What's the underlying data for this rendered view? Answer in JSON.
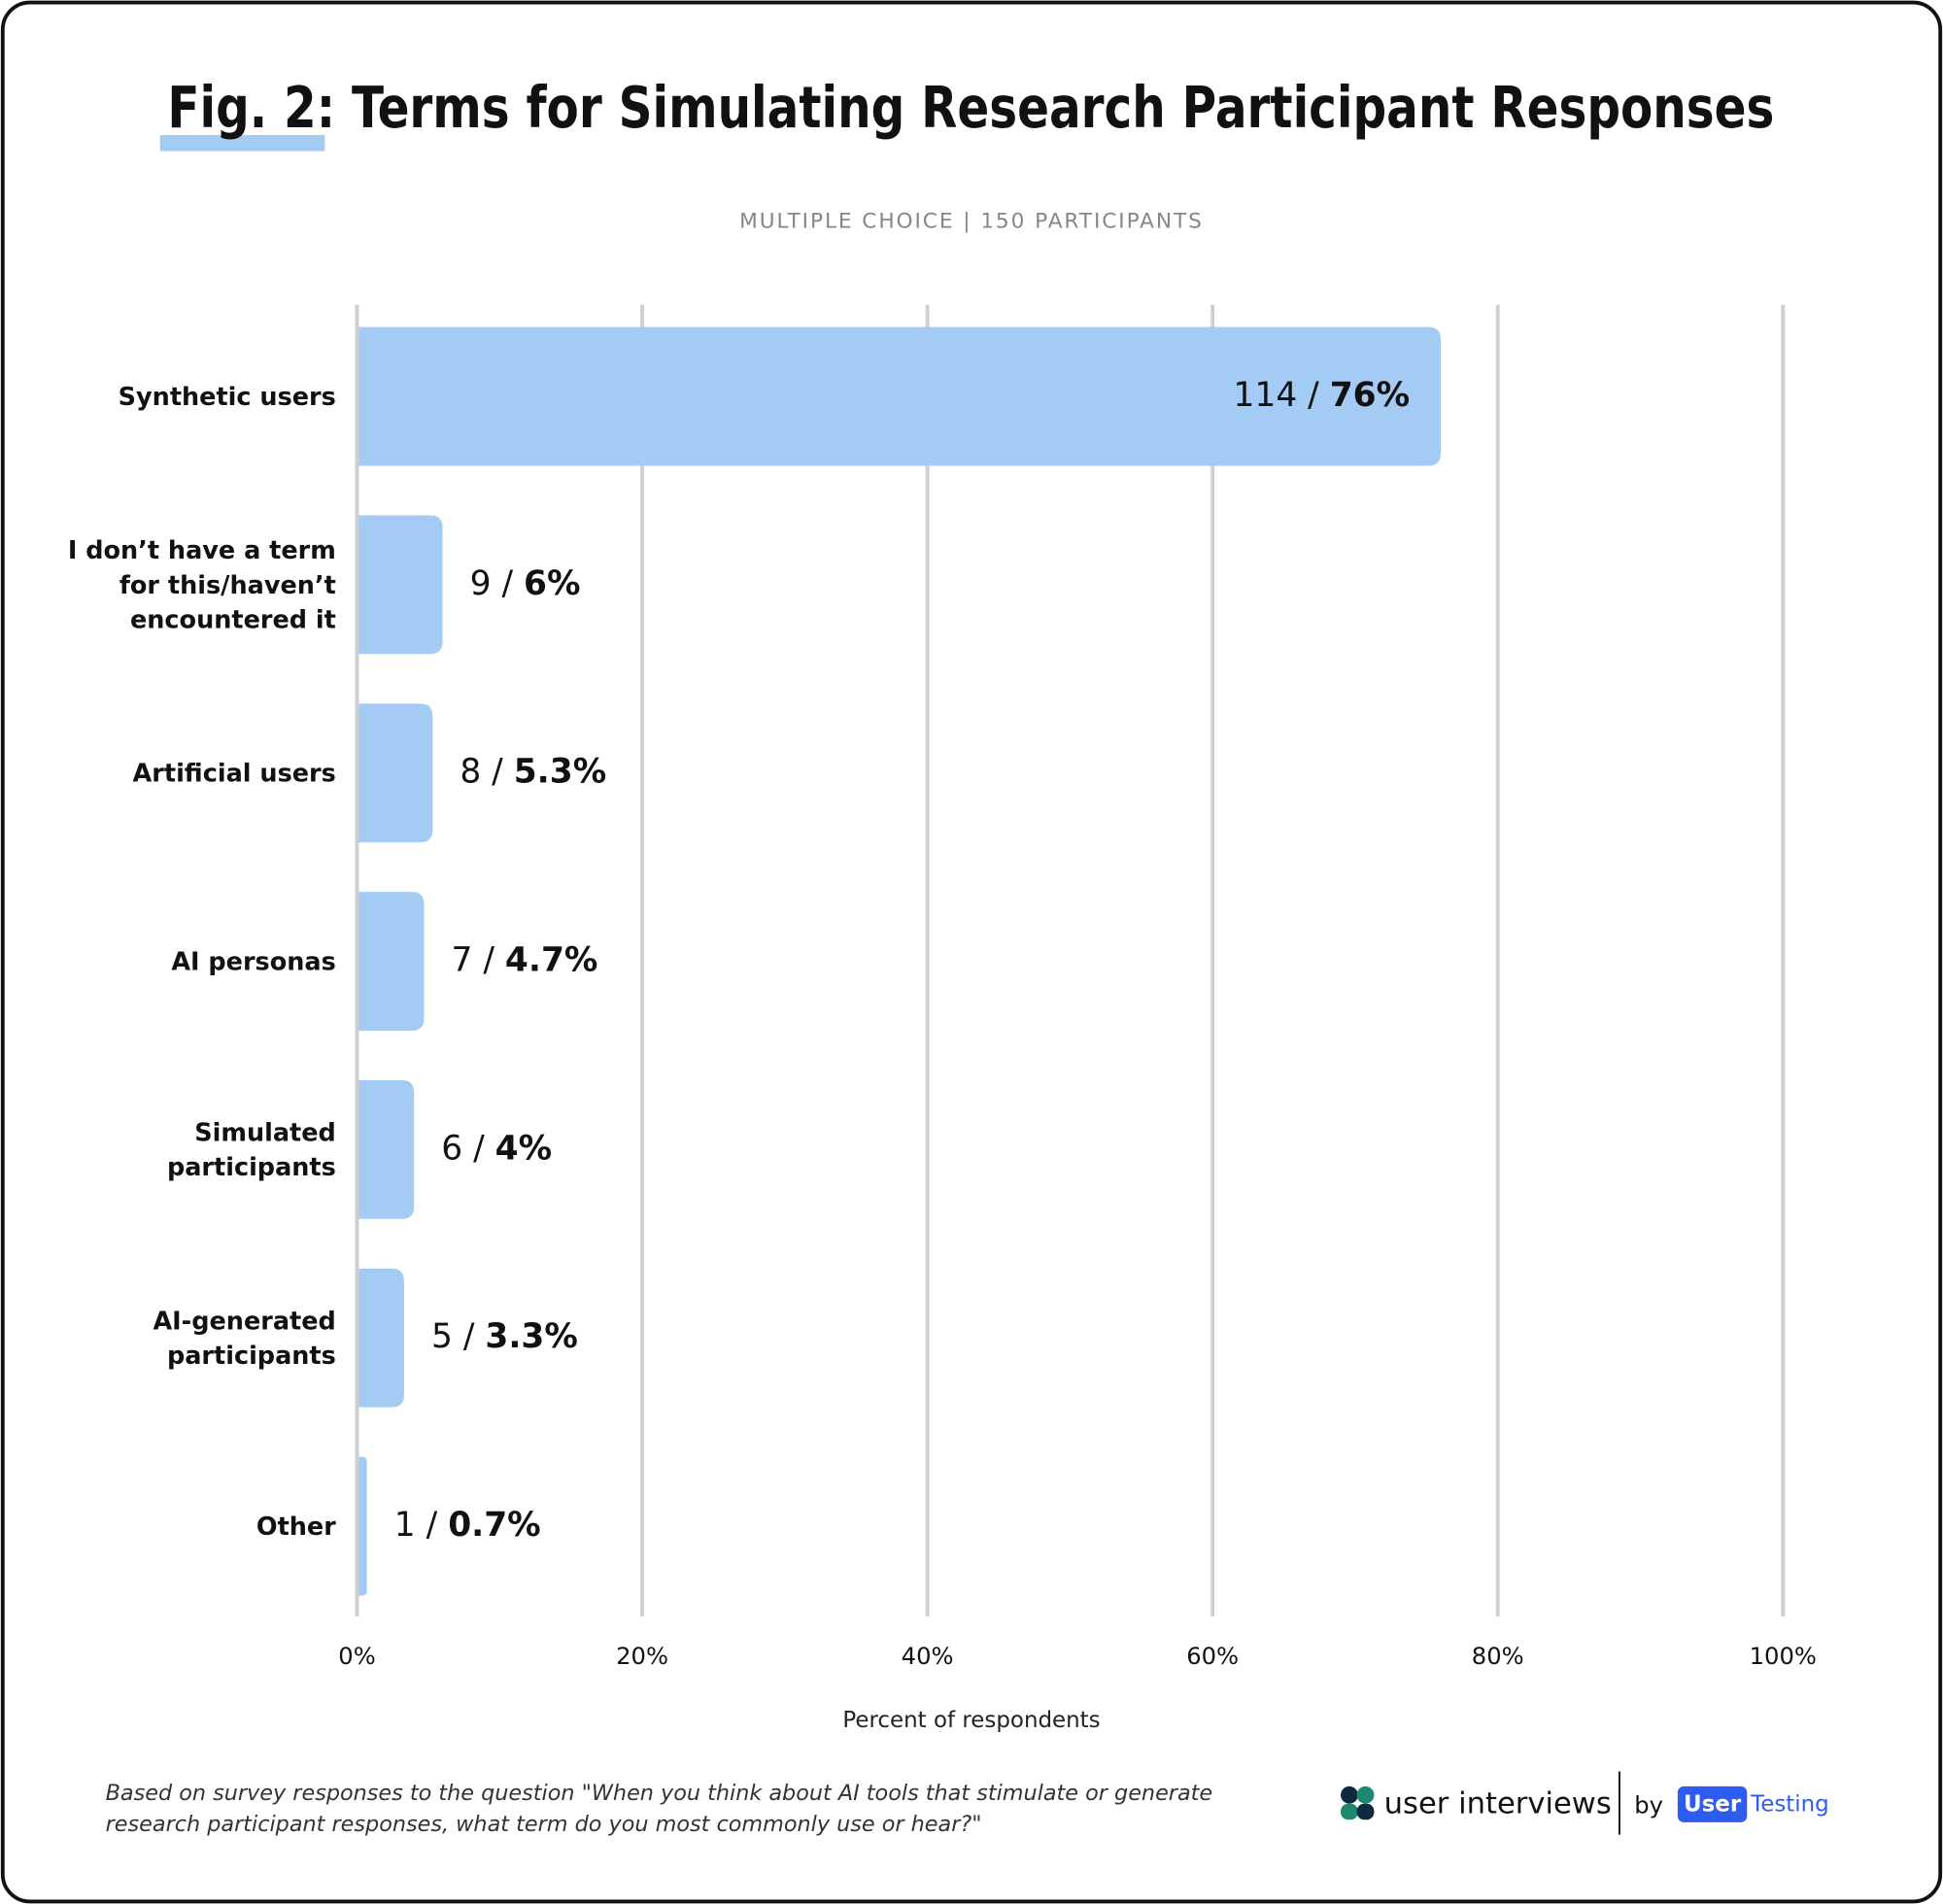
{
  "chart_data": {
    "type": "hbar",
    "title": "Fig. 2: Terms for Simulating Research Participant Responses",
    "subtitle": "MULTIPLE CHOICE | 150 PARTICIPANTS",
    "categories": [
      "Synthetic users",
      "I don’t have a term for this/haven’t encountered it",
      "Artificial users",
      "AI personas",
      "Simulated participants",
      "AI-generated participants",
      "Other"
    ],
    "values": [
      76,
      6,
      5.3,
      4.7,
      4,
      3.3,
      0.7
    ],
    "value_labels": [
      "114 / 76%",
      "9 / 6%",
      "8 / 5.3%",
      "7 / 4.7%",
      "6 / 4%",
      "5 / 3.3%",
      "1 / 0.7%"
    ],
    "color": "#a4cbf4",
    "xlim": [
      0,
      100
    ],
    "xticks": [
      {
        "value": 0,
        "label": "0%"
      },
      {
        "value": 20,
        "label": "20%"
      },
      {
        "value": 40,
        "label": "40%"
      },
      {
        "value": 60,
        "label": "60%"
      },
      {
        "value": 80,
        "label": "80%"
      },
      {
        "value": 100,
        "label": "100%"
      }
    ],
    "xlabel": "Percent of respondents",
    "grid": true,
    "footnote": "Based on survey responses to the question \"When you think about AI tools that stimulate or generate research participant responses, what term do you most commonly use or hear?\"",
    "logo": {
      "brand": "user interviews",
      "by": "by",
      "partner_a": "User",
      "partner_b": "Testing"
    }
  }
}
